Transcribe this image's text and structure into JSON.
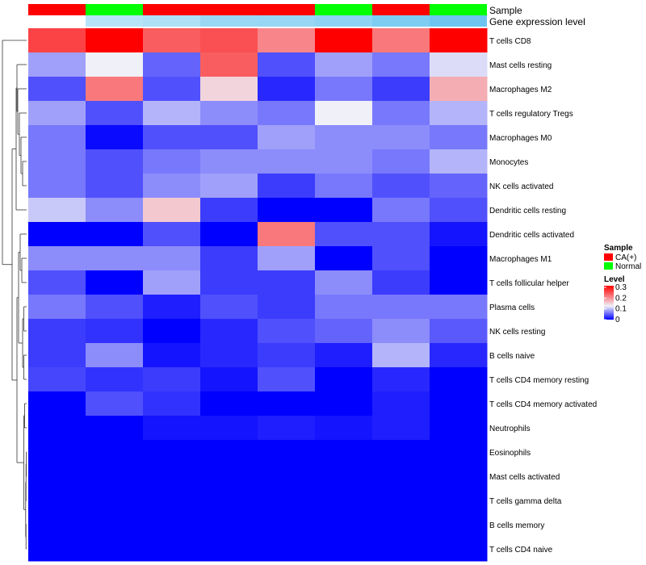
{
  "chart_data": {
    "type": "heatmap",
    "title": "",
    "annotation_tracks": {
      "sample": {
        "label": "Sample",
        "values": [
          "CA(+)",
          "Normal",
          "CA(+)",
          "CA(+)",
          "CA(+)",
          "Normal",
          "CA(+)",
          "Normal"
        ]
      },
      "gene_expression": {
        "label": "Gene expression level",
        "values": [
          0.0,
          0.5,
          0.55,
          0.7,
          0.72,
          0.78,
          0.9,
          1.0
        ]
      }
    },
    "columns": 8,
    "rows": [
      "T cells CD8",
      "Mast cells resting",
      "Macrophages M2",
      "T cells regulatory  Tregs",
      "Macrophages M0",
      "Monocytes",
      "NK cells activated",
      "Dendritic cells resting",
      "Dendritic cells activated",
      "Macrophages M1",
      "T cells follicular helper",
      "Plasma cells",
      "NK cells resting",
      "B cells naive",
      "T cells CD4 memory resting",
      "T cells CD4 memory activated",
      "Neutrophils",
      "Eosinophils",
      "Mast cells activated",
      "T cells gamma delta",
      "B cells memory",
      "T cells CD4 naive"
    ],
    "values": [
      [
        0.25,
        0.3,
        0.23,
        0.24,
        0.2,
        0.3,
        0.21,
        0.3
      ],
      [
        0.08,
        0.12,
        0.05,
        0.23,
        0.04,
        0.08,
        0.06,
        0.11
      ],
      [
        0.04,
        0.21,
        0.04,
        0.14,
        0.02,
        0.06,
        0.03,
        0.17
      ],
      [
        0.08,
        0.04,
        0.09,
        0.07,
        0.06,
        0.12,
        0.06,
        0.09
      ],
      [
        0.06,
        0.005,
        0.04,
        0.04,
        0.08,
        0.07,
        0.07,
        0.06
      ],
      [
        0.06,
        0.04,
        0.06,
        0.07,
        0.07,
        0.07,
        0.06,
        0.09
      ],
      [
        0.06,
        0.04,
        0.07,
        0.08,
        0.03,
        0.06,
        0.04,
        0.05
      ],
      [
        0.1,
        0.07,
        0.15,
        0.03,
        0.0,
        0.0,
        0.06,
        0.04
      ],
      [
        0.0,
        0.0,
        0.04,
        0.0,
        0.21,
        0.04,
        0.04,
        0.01
      ],
      [
        0.07,
        0.07,
        0.07,
        0.03,
        0.08,
        0.0,
        0.04,
        0.0
      ],
      [
        0.04,
        0.0,
        0.08,
        0.03,
        0.03,
        0.07,
        0.03,
        0.0
      ],
      [
        0.06,
        0.04,
        0.015,
        0.04,
        0.03,
        0.06,
        0.06,
        0.06
      ],
      [
        0.03,
        0.025,
        0.0,
        0.02,
        0.04,
        0.05,
        0.07,
        0.045
      ],
      [
        0.03,
        0.07,
        0.01,
        0.02,
        0.03,
        0.015,
        0.09,
        0.02
      ],
      [
        0.035,
        0.025,
        0.03,
        0.01,
        0.04,
        0.0,
        0.02,
        0.0
      ],
      [
        0.0,
        0.04,
        0.025,
        0.0,
        0.0,
        0.0,
        0.015,
        0.0
      ],
      [
        0.0,
        0.0,
        0.01,
        0.01,
        0.015,
        0.01,
        0.015,
        0.0
      ],
      [
        0.0,
        0.0,
        0.0,
        0.0,
        0.0,
        0.0,
        0.0,
        0.0
      ],
      [
        0.0,
        0.0,
        0.0,
        0.0,
        0.0,
        0.0,
        0.0,
        0.0
      ],
      [
        0.0,
        0.0,
        0.0,
        0.0,
        0.0,
        0.0,
        0.0,
        0.0
      ],
      [
        0.0,
        0.0,
        0.0,
        0.0,
        0.0,
        0.0,
        0.0,
        0.0
      ],
      [
        0.0,
        0.0,
        0.0,
        0.0,
        0.0,
        0.0,
        0.0,
        0.0
      ]
    ],
    "color_scale": {
      "low": "#0000ff",
      "mid": "#f0f0f8",
      "high": "#ff0000",
      "min": 0,
      "mid_value": 0.12,
      "max": 0.3
    },
    "legends": {
      "sample": {
        "title": "Sample",
        "entries": [
          {
            "label": "CA(+)",
            "color": "#ff0000"
          },
          {
            "label": "Normal",
            "color": "#00ff00"
          }
        ]
      },
      "level": {
        "title": "Level",
        "ticks": [
          "0.3",
          "0.2",
          "0.1",
          "0"
        ]
      }
    },
    "row_dendrogram": true,
    "grid": false,
    "legend_position": "right"
  }
}
